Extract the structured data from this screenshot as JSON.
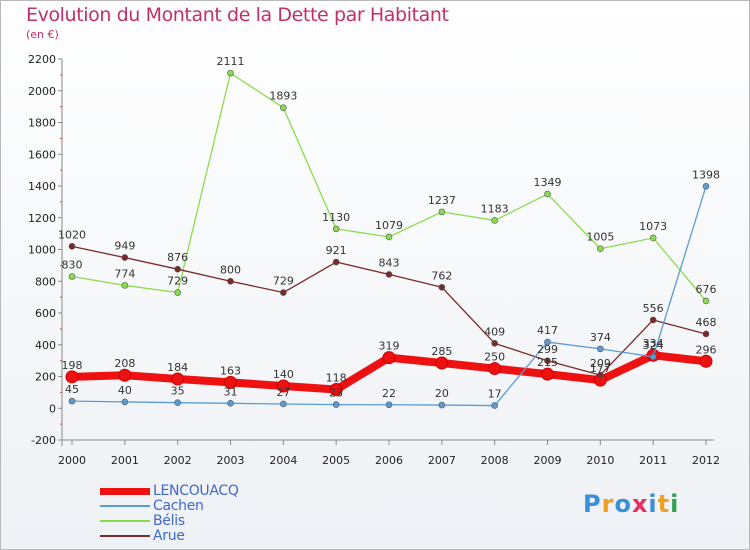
{
  "header": {
    "title": "Evolution du Montant de la Dette par Habitant",
    "unit": "(en €)"
  },
  "logo": {
    "text": "Proxiti",
    "colors": [
      "#3a8fd8",
      "#f0a020",
      "#3a8fd8",
      "#e83060",
      "#3a8fd8",
      "#f0a020",
      "#30a050"
    ]
  },
  "chart_data": {
    "type": "line",
    "x": [
      "2000",
      "2001",
      "2002",
      "2003",
      "2004",
      "2005",
      "2006",
      "2007",
      "2008",
      "2009",
      "2010",
      "2011",
      "2012"
    ],
    "ylim": [
      -200,
      2200
    ],
    "yticks": [
      -200,
      0,
      200,
      400,
      600,
      800,
      1000,
      1200,
      1400,
      1600,
      1800,
      2000,
      2200
    ],
    "grid": false,
    "legend_position": "bottom-left",
    "series": [
      {
        "name": "LENCOUACQ",
        "color": "#ee1111",
        "values": [
          198,
          208,
          184,
          163,
          140,
          118,
          319,
          285,
          250,
          215,
          177,
          334,
          296
        ],
        "labels": [
          "198",
          "208",
          "184",
          "163",
          "140",
          "118",
          "319",
          "285",
          "250",
          "215",
          "177",
          "334",
          "296"
        ]
      },
      {
        "name": "Cachen",
        "color": "#5b9bd5",
        "values": [
          45,
          40,
          35,
          31,
          27,
          23,
          22,
          20,
          17,
          417,
          374,
          324,
          1398
        ],
        "labels": [
          "45",
          "40",
          "35",
          "31",
          "27",
          "23",
          "22",
          "20",
          "17",
          "417",
          "374",
          "324",
          "1398"
        ]
      },
      {
        "name": "Bélis",
        "color": "#8bdc4c",
        "values": [
          830,
          774,
          729,
          2111,
          1893,
          1130,
          1079,
          1237,
          1183,
          1349,
          1005,
          1073,
          676
        ],
        "labels": [
          "830",
          "774",
          "729",
          "2111",
          "1893",
          "1130",
          "1079",
          "1237",
          "1183",
          "1349",
          "1005",
          "1073",
          "676"
        ]
      },
      {
        "name": "Arue",
        "color": "#7a2a2a",
        "values": [
          1020,
          949,
          876,
          800,
          729,
          921,
          843,
          762,
          409,
          299,
          209,
          556,
          468
        ],
        "labels": [
          "1020",
          "949",
          "876",
          "800",
          "729",
          "921",
          "843",
          "762",
          "409",
          "299",
          "209",
          "556",
          "468"
        ]
      }
    ]
  }
}
